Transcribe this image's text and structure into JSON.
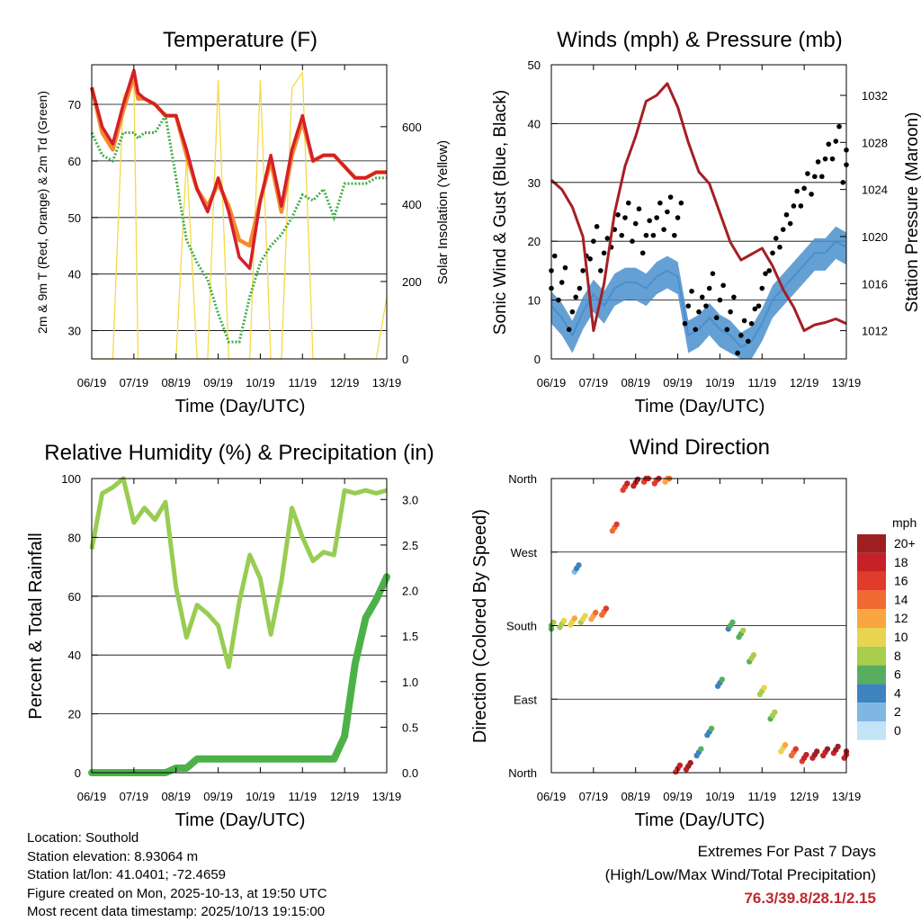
{
  "time_ticks": [
    "06/19",
    "07/19",
    "08/19",
    "09/19",
    "10/19",
    "11/19",
    "12/19",
    "13/19"
  ],
  "x_label": "Time (Day/UTC)",
  "panels": {
    "temperature": {
      "title": "Temperature (F)",
      "ylabel_left": "2m & 9m T (Red, Orange) & 2m Td (Green)",
      "ylabel_right": "Solar Insolation (Yellow)",
      "left_ticks": [
        "30",
        "40",
        "50",
        "60",
        "70"
      ],
      "right_ticks": [
        "0",
        "200",
        "400",
        "600"
      ]
    },
    "winds": {
      "title": "Winds (mph) & Pressure (mb)",
      "ylabel_left": "Sonic Wind & Gust (Blue, Black)",
      "ylabel_right": "Station Pressure (Maroon)",
      "left_ticks": [
        "0",
        "10",
        "20",
        "30",
        "40",
        "50"
      ],
      "right_ticks": [
        "1012",
        "1016",
        "1020",
        "1024",
        "1028",
        "1032"
      ]
    },
    "humidity": {
      "title": "Relative Humidity (%) & Precipitation (in)",
      "ylabel_left": "Percent & Total Rainfall",
      "left_ticks": [
        "0",
        "20",
        "40",
        "60",
        "80",
        "100"
      ],
      "right_ticks": [
        "0.0",
        "0.5",
        "1.0",
        "1.5",
        "2.0",
        "2.5",
        "3.0"
      ]
    },
    "direction": {
      "title": "Wind Direction",
      "ylabel_left": "Direction (Colored By Speed)",
      "dir_ticks": [
        "North",
        "East",
        "South",
        "West",
        "North"
      ],
      "legend_title": "mph",
      "legend_labels": [
        "20+",
        "18",
        "16",
        "14",
        "12",
        "10",
        "8",
        "6",
        "4",
        "2",
        "0"
      ],
      "legend_colors": [
        "#9e1f22",
        "#c52228",
        "#e03b2c",
        "#f06a31",
        "#f9a640",
        "#e8d44f",
        "#a9cd4c",
        "#58ae5e",
        "#3d83be",
        "#7fb7e3",
        "#c3e4f6"
      ]
    }
  },
  "colors": {
    "temp_2m": "#d4202a",
    "temp_9m": "#f58a2a",
    "dewpoint": "#3fae49",
    "solar": "#f5d949",
    "wind": "#4a8fcd",
    "gust": "#000000",
    "pressure": "#a51f24",
    "rh": "#98cc52",
    "rain": "#4cb248",
    "extremes": "#c0282d"
  },
  "chart_data": [
    {
      "type": "line",
      "title": "Temperature (F)",
      "xlabel": "Time (Day/UTC)",
      "ylabel": "2m & 9m T (Red, Orange) & 2m Td (Green)",
      "ylim": [
        25,
        77
      ],
      "y2label": "Solar Insolation (Yellow)",
      "y2lim": [
        0,
        760
      ],
      "x": [
        0,
        0.25,
        0.5,
        0.75,
        1,
        1.1,
        1.25,
        1.5,
        1.75,
        2,
        2.25,
        2.5,
        2.75,
        3,
        3.25,
        3.5,
        3.75,
        4,
        4.25,
        4.5,
        4.75,
        5,
        5.25,
        5.5,
        5.75,
        6,
        6.25,
        6.5,
        6.75,
        7
      ],
      "series": [
        {
          "name": "2m T",
          "values": [
            73,
            66,
            63,
            70,
            76,
            72,
            71,
            70,
            68,
            68,
            62,
            55,
            51,
            57,
            51,
            43,
            41,
            53,
            61,
            52,
            62,
            68,
            60,
            61,
            61,
            59,
            57,
            57,
            58,
            58
          ]
        },
        {
          "name": "9m T",
          "values": [
            73,
            65,
            62,
            69,
            75,
            71,
            71,
            70,
            68,
            68,
            61,
            55,
            52,
            56,
            52,
            46,
            45,
            53,
            60,
            51,
            61,
            67,
            60,
            61,
            61,
            59,
            57,
            57,
            58,
            58
          ]
        },
        {
          "name": "2m Td",
          "values": [
            65,
            61,
            60,
            65,
            65,
            64,
            65,
            65,
            68,
            57,
            46,
            42,
            39,
            33,
            28,
            28,
            36,
            42,
            45,
            47,
            50,
            54,
            53,
            55,
            50,
            56,
            56,
            56,
            57,
            57
          ]
        },
        {
          "name": "Solar",
          "axis": "y2",
          "values": [
            0,
            0,
            0,
            680,
            720,
            0,
            0,
            0,
            0,
            0,
            520,
            0,
            0,
            720,
            0,
            0,
            0,
            720,
            0,
            0,
            700,
            740,
            0,
            0,
            0,
            0,
            0,
            0,
            0,
            160
          ]
        }
      ]
    },
    {
      "type": "line",
      "title": "Winds (mph) & Pressure (mb)",
      "xlabel": "Time (Day/UTC)",
      "ylabel": "Sonic Wind & Gust (Blue, Black)",
      "ylim": [
        0,
        50
      ],
      "y2label": "Station Pressure (Maroon)",
      "y2lim": [
        1009.6,
        1034.6
      ],
      "x": [
        0,
        0.25,
        0.5,
        0.75,
        1,
        1.25,
        1.5,
        1.75,
        2,
        2.25,
        2.5,
        2.75,
        3,
        3.25,
        3.5,
        3.75,
        4,
        4.25,
        4.5,
        4.75,
        5,
        5.25,
        5.5,
        5.75,
        6,
        6.25,
        6.5,
        6.75,
        7
      ],
      "series": [
        {
          "name": "Sonic Wind",
          "values": [
            9,
            7,
            4,
            8,
            11,
            9,
            12,
            13,
            13,
            12,
            14,
            15,
            14,
            4,
            5,
            7,
            5,
            4,
            2,
            3,
            6,
            10,
            12,
            14,
            16,
            18,
            18,
            20,
            19
          ]
        },
        {
          "name": "Gust",
          "values": [
            15,
            13,
            8,
            15,
            20,
            18,
            22,
            24,
            23,
            21,
            24,
            25,
            24,
            9,
            8,
            12,
            10,
            8,
            4,
            6,
            12,
            18,
            22,
            26,
            29,
            31,
            34,
            37,
            33
          ]
        },
        {
          "name": "Pressure",
          "axis": "y2",
          "values": [
            1024.8,
            1024,
            1022.5,
            1020,
            1012,
            1016,
            1022,
            1026,
            1028.5,
            1031.5,
            1032,
            1033,
            1031,
            1028,
            1025.5,
            1024.5,
            1022,
            1019.5,
            1018,
            1018.5,
            1019,
            1017.5,
            1015.5,
            1014,
            1012,
            1012.5,
            1012.7,
            1013,
            1012.6
          ]
        }
      ]
    },
    {
      "type": "line",
      "title": "Relative Humidity (%) & Precipitation (in)",
      "xlabel": "Time (Day/UTC)",
      "ylabel": "Percent & Total Rainfall",
      "ylim": [
        0,
        100
      ],
      "y2lim": [
        0,
        3.23
      ],
      "x": [
        0,
        0.25,
        0.5,
        0.75,
        1,
        1.25,
        1.5,
        1.75,
        2,
        2.25,
        2.5,
        2.75,
        3,
        3.25,
        3.5,
        3.75,
        4,
        4.25,
        4.5,
        4.75,
        5,
        5.25,
        5.5,
        5.75,
        6,
        6.25,
        6.5,
        6.75,
        7
      ],
      "series": [
        {
          "name": "Relative Humidity",
          "values": [
            76,
            95,
            97,
            100,
            85,
            90,
            86,
            92,
            63,
            46,
            57,
            54,
            50,
            36,
            58,
            74,
            66,
            47,
            65,
            90,
            80,
            72,
            75,
            74,
            96,
            95,
            96,
            95,
            96
          ]
        },
        {
          "name": "Total Rainfall",
          "axis": "y2",
          "values": [
            0,
            0,
            0,
            0,
            0,
            0,
            0,
            0,
            0.05,
            0.05,
            0.15,
            0.15,
            0.15,
            0.15,
            0.15,
            0.15,
            0.15,
            0.15,
            0.15,
            0.15,
            0.15,
            0.15,
            0.15,
            0.15,
            0.4,
            1.2,
            1.7,
            1.9,
            2.15
          ]
        }
      ]
    },
    {
      "type": "scatter",
      "title": "Wind Direction",
      "xlabel": "Time (Day/UTC)",
      "ylabel": "Direction (Colored By Speed)",
      "ylim": [
        0,
        360
      ],
      "yticklabels": [
        "North",
        "East",
        "South",
        "West",
        "North"
      ],
      "color_by": "speed (mph)",
      "x": [
        0,
        0.25,
        0.5,
        0.6,
        0.75,
        1,
        1.25,
        1.5,
        1.75,
        2,
        2.25,
        2.5,
        2.75,
        3,
        3.25,
        3.5,
        3.75,
        4,
        4.25,
        4.5,
        4.75,
        5,
        5.25,
        5.5,
        5.75,
        6,
        6.25,
        6.5,
        6.75,
        7
      ],
      "values": [
        180,
        182,
        185,
        250,
        188,
        192,
        197,
        300,
        350,
        355,
        360,
        358,
        360,
        5,
        8,
        25,
        50,
        110,
        180,
        170,
        140,
        100,
        70,
        30,
        25,
        18,
        22,
        25,
        28,
        22
      ],
      "speeds": [
        6,
        8,
        10,
        3,
        9,
        12,
        14,
        14,
        16,
        18,
        17,
        16,
        12,
        17,
        19,
        4,
        4,
        4,
        5,
        6,
        7,
        8,
        7,
        10,
        14,
        17,
        19,
        18,
        19,
        18
      ]
    }
  ],
  "footer": {
    "location": "Location: Southold",
    "elevation": "Station elevation: 8.93064 m",
    "latlon": "Station lat/lon: 41.0401; -72.4659",
    "created": "Figure created on Mon, 2025-10-13, at 19:50 UTC",
    "recent": "Most recent data timestamp: 2025/10/13 19:15:00",
    "extremes_title": "Extremes For Past 7 Days",
    "extremes_sub": "(High/Low/Max Wind/Total Precipitation)",
    "extremes_values": "76.3/39.8/28.1/2.15"
  }
}
